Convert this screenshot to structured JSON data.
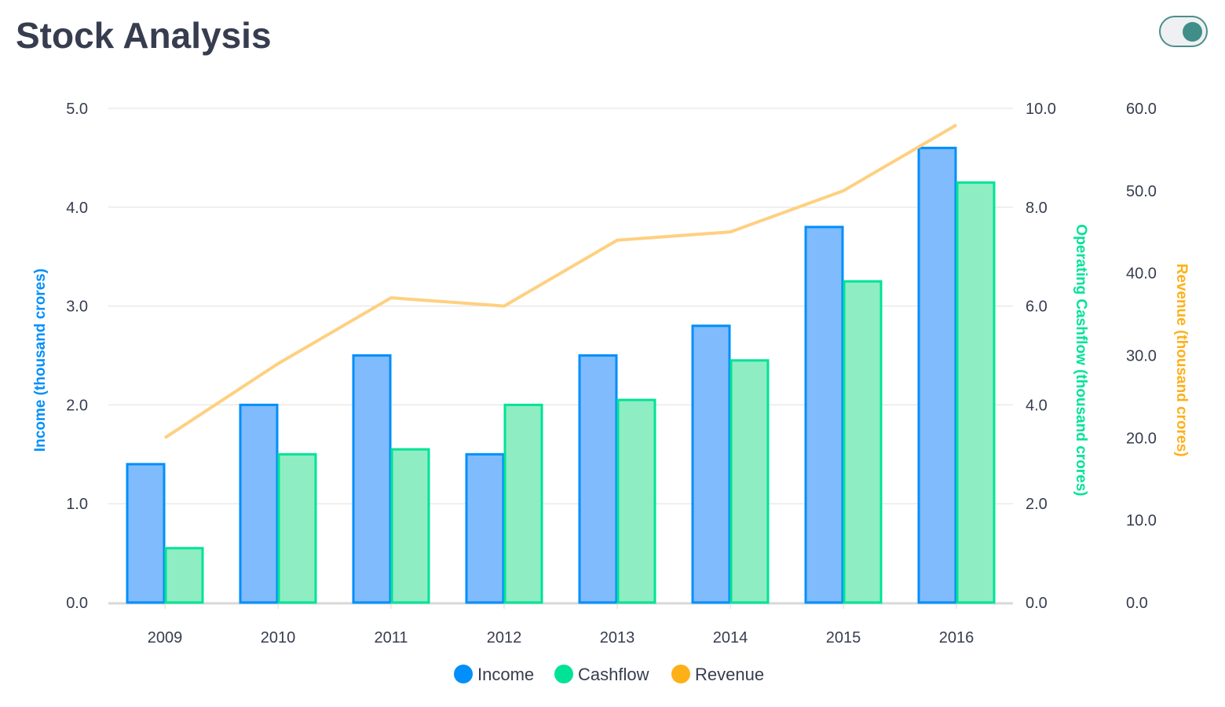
{
  "header": {
    "title": "Stock Analysis",
    "toggle_state": "on"
  },
  "colors": {
    "income": "#008ffb",
    "income_fill": "#80bbfd",
    "cashflow": "#00e396",
    "cashflow_fill": "#8eedc3",
    "revenue": "#feb019",
    "revenue_line": "#fed080",
    "grid": "#e0e0e0",
    "text": "#373d4f"
  },
  "chart_data": {
    "type": "bar",
    "categories": [
      "2009",
      "2010",
      "2011",
      "2012",
      "2013",
      "2014",
      "2015",
      "2016"
    ],
    "series": [
      {
        "name": "Income",
        "type": "bar",
        "axis": "y",
        "values": [
          1.4,
          2.0,
          2.5,
          1.5,
          2.5,
          2.8,
          3.8,
          4.6
        ]
      },
      {
        "name": "Cashflow",
        "type": "bar",
        "axis": "y2",
        "values": [
          1.1,
          3.0,
          3.1,
          4.0,
          4.1,
          4.9,
          6.5,
          8.5
        ]
      },
      {
        "name": "Revenue",
        "type": "line",
        "axis": "y3",
        "values": [
          20,
          29,
          37,
          36,
          44,
          45,
          50,
          58
        ]
      }
    ],
    "axes": {
      "y": {
        "title": "Income (thousand crores)",
        "ylim": [
          0,
          5
        ],
        "ticks": [
          "0.0",
          "1.0",
          "2.0",
          "3.0",
          "4.0",
          "5.0"
        ]
      },
      "y2": {
        "title": "Operating Cashflow (thousand crores)",
        "ylim": [
          0,
          10
        ],
        "ticks": [
          "0.0",
          "2.0",
          "4.0",
          "6.0",
          "8.0",
          "10.0"
        ]
      },
      "y3": {
        "title": "Revenue (thousand crores)",
        "ylim": [
          0,
          60
        ],
        "ticks": [
          "0.0",
          "10.0",
          "20.0",
          "30.0",
          "40.0",
          "50.0",
          "60.0"
        ]
      }
    },
    "legend": {
      "position": "bottom",
      "items": [
        "Income",
        "Cashflow",
        "Revenue"
      ]
    },
    "grid": true
  }
}
